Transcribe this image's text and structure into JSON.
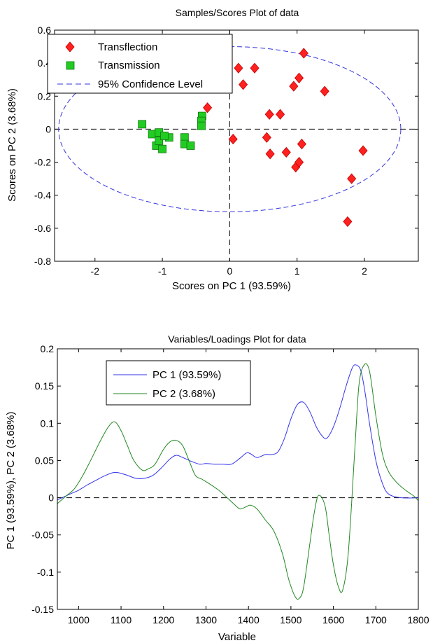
{
  "chart_data": [
    {
      "type": "scatter",
      "title": "Samples/Scores Plot of data",
      "xlabel": "Scores on PC 1 (93.59%)",
      "ylabel": "Scores on PC 2 (3.68%)",
      "xlim": [
        -2.6,
        2.8
      ],
      "ylim": [
        -0.8,
        0.6
      ],
      "xticks": [
        -2,
        -1,
        0,
        1,
        2
      ],
      "yticks": [
        -0.8,
        -0.6,
        -0.4,
        -0.2,
        0,
        0.2,
        0.4,
        0.6
      ],
      "ytick_labels": [
        "-0.8",
        "-0.6",
        "-0.4",
        "-0.2",
        "0",
        "0.2",
        "0.4",
        "0.6"
      ],
      "legend": [
        "Transflection",
        "Transmission",
        "95% Confidence Level"
      ],
      "legend_position": "top-left",
      "series": [
        {
          "name": "Transflection",
          "color": "#ff2020",
          "marker": "diamond",
          "points": [
            [
              -0.33,
              0.13
            ],
            [
              0.13,
              0.37
            ],
            [
              0.2,
              0.27
            ],
            [
              0.37,
              0.37
            ],
            [
              0.05,
              -0.06
            ],
            [
              0.55,
              -0.05
            ],
            [
              0.59,
              0.09
            ],
            [
              0.6,
              -0.15
            ],
            [
              0.75,
              0.09
            ],
            [
              0.84,
              -0.14
            ],
            [
              0.95,
              0.26
            ],
            [
              1.03,
              0.31
            ],
            [
              1.1,
              0.46
            ],
            [
              0.98,
              -0.23
            ],
            [
              1.03,
              -0.2
            ],
            [
              1.07,
              -0.09
            ],
            [
              1.41,
              0.23
            ],
            [
              1.81,
              -0.3
            ],
            [
              1.98,
              -0.13
            ],
            [
              1.75,
              -0.56
            ]
          ]
        },
        {
          "name": "Transmission",
          "color": "#22cc22",
          "marker": "square",
          "points": [
            [
              -1.3,
              0.03
            ],
            [
              -1.15,
              -0.03
            ],
            [
              -1.05,
              -0.02
            ],
            [
              -1.09,
              -0.1
            ],
            [
              -1.05,
              -0.07
            ],
            [
              -1.0,
              -0.12
            ],
            [
              -0.9,
              -0.05
            ],
            [
              -0.97,
              -0.04
            ],
            [
              -0.67,
              -0.05
            ],
            [
              -0.67,
              -0.09
            ],
            [
              -0.58,
              -0.1
            ],
            [
              -0.41,
              0.08
            ],
            [
              -0.42,
              0.05
            ],
            [
              -0.42,
              0.02
            ]
          ]
        }
      ],
      "ellipse": {
        "name": "95% Confidence Level",
        "color": "#3333dd",
        "cx": 0,
        "cy": 0,
        "rx": 2.54,
        "ry": 0.5
      },
      "reference_lines": {
        "x": 0,
        "y": 0,
        "style": "dashed",
        "color": "#000000"
      }
    },
    {
      "type": "line",
      "title": "Variables/Loadings Plot for data",
      "xlabel": "Variable",
      "ylabel": "PC 1 (93.59%), PC 2 (3.68%)",
      "xlim": [
        950,
        1800
      ],
      "ylim": [
        -0.15,
        0.2
      ],
      "xticks": [
        1000,
        1100,
        1200,
        1300,
        1400,
        1500,
        1600,
        1700,
        1800
      ],
      "yticks": [
        -0.15,
        -0.1,
        -0.05,
        0,
        0.05,
        0.1,
        0.15,
        0.2
      ],
      "ytick_labels": [
        "-0.15",
        "-0.1",
        "-0.05",
        "0",
        "0.05",
        "0.1",
        "0.15",
        "0.2"
      ],
      "legend": [
        "PC 1 (93.59%)",
        "PC 2 (3.68%)"
      ],
      "legend_position": "top-left",
      "reference_line_y": 0,
      "series": [
        {
          "name": "PC 1 (93.59%)",
          "color": "#3333ee",
          "x": [
            950,
            980,
            1000,
            1020,
            1040,
            1060,
            1085,
            1110,
            1135,
            1155,
            1175,
            1195,
            1215,
            1230,
            1245,
            1265,
            1285,
            1300,
            1320,
            1340,
            1360,
            1380,
            1395,
            1405,
            1420,
            1440,
            1455,
            1470,
            1485,
            1500,
            1515,
            1530,
            1545,
            1560,
            1575,
            1585,
            1600,
            1615,
            1630,
            1645,
            1655,
            1665,
            1675,
            1685,
            1700,
            1715,
            1730,
            1760,
            1800
          ],
          "y": [
            -0.003,
            0.005,
            0.01,
            0.017,
            0.023,
            0.029,
            0.034,
            0.031,
            0.026,
            0.026,
            0.03,
            0.04,
            0.052,
            0.057,
            0.054,
            0.049,
            0.045,
            0.046,
            0.045,
            0.045,
            0.045,
            0.053,
            0.06,
            0.059,
            0.054,
            0.058,
            0.058,
            0.062,
            0.08,
            0.106,
            0.125,
            0.128,
            0.115,
            0.095,
            0.082,
            0.08,
            0.095,
            0.12,
            0.15,
            0.175,
            0.178,
            0.17,
            0.14,
            0.1,
            0.05,
            0.02,
            0.005,
            0.0,
            0.0
          ]
        },
        {
          "name": "PC 2 (3.68%)",
          "color": "#228822",
          "x": [
            950,
            970,
            990,
            1010,
            1030,
            1050,
            1070,
            1085,
            1100,
            1115,
            1130,
            1150,
            1165,
            1180,
            1200,
            1215,
            1230,
            1245,
            1260,
            1275,
            1290,
            1310,
            1330,
            1350,
            1365,
            1380,
            1395,
            1405,
            1420,
            1440,
            1460,
            1480,
            1495,
            1510,
            1520,
            1530,
            1545,
            1555,
            1565,
            1580,
            1590,
            1600,
            1612,
            1622,
            1635,
            1650,
            1660,
            1672,
            1685,
            1700,
            1715,
            1730,
            1750,
            1770,
            1790,
            1800
          ],
          "y": [
            -0.008,
            0.002,
            0.012,
            0.03,
            0.052,
            0.075,
            0.095,
            0.102,
            0.09,
            0.07,
            0.05,
            0.037,
            0.039,
            0.045,
            0.065,
            0.075,
            0.077,
            0.07,
            0.05,
            0.03,
            0.025,
            0.018,
            0.01,
            0.0,
            -0.008,
            -0.015,
            -0.012,
            -0.01,
            -0.015,
            -0.03,
            -0.045,
            -0.075,
            -0.11,
            -0.133,
            -0.135,
            -0.12,
            -0.06,
            -0.02,
            0.003,
            -0.01,
            -0.05,
            -0.09,
            -0.12,
            -0.124,
            -0.075,
            0.06,
            0.15,
            0.178,
            0.17,
            0.11,
            0.06,
            0.035,
            0.02,
            0.01,
            0.002,
            -0.004
          ]
        }
      ]
    }
  ]
}
